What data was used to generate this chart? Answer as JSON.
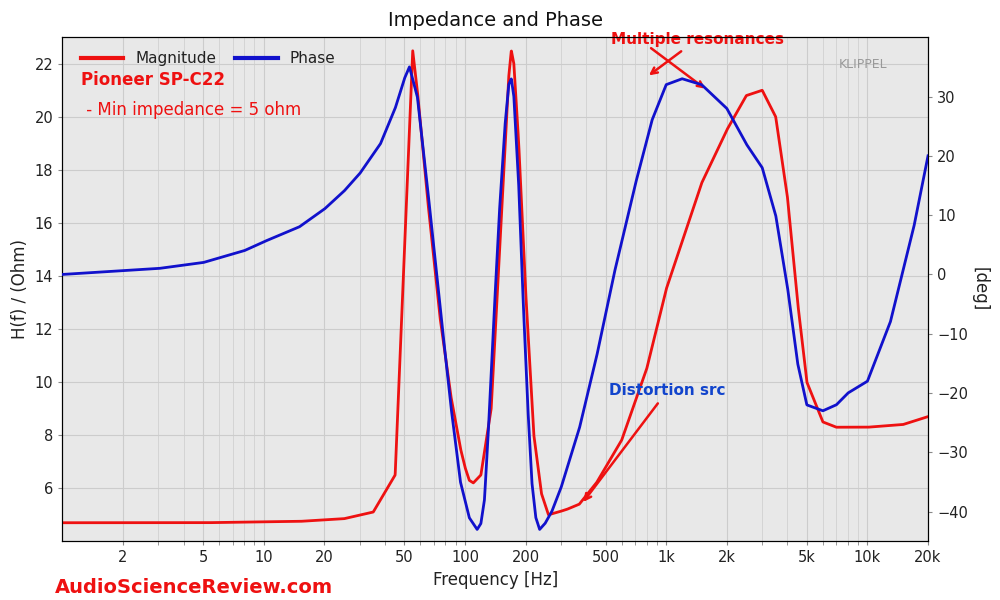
{
  "title": "Impedance and Phase",
  "xlabel": "Frequency [Hz]",
  "ylabel_left": "H(f) / (Ohm)",
  "ylabel_right": "[deg]",
  "xlim": [
    1,
    20000
  ],
  "ylim_left": [
    4,
    23
  ],
  "ylim_right": [
    -45,
    40
  ],
  "yticks_left": [
    6,
    8,
    10,
    12,
    14,
    16,
    18,
    20,
    22
  ],
  "yticks_right": [
    -40,
    -30,
    -20,
    -10,
    0,
    10,
    20,
    30
  ],
  "xtick_labels": [
    "2",
    "5",
    "10",
    "20",
    "50",
    "100",
    "200",
    "500",
    "1k",
    "2k",
    "5k",
    "10k",
    "20k"
  ],
  "xtick_values": [
    2,
    5,
    10,
    20,
    50,
    100,
    200,
    500,
    1000,
    2000,
    5000,
    10000,
    20000
  ],
  "mag_color": "#ee1111",
  "phase_color": "#1111cc",
  "annot_color": "#ee1111",
  "text_blue": "#1144cc",
  "text_red": "#ee1111",
  "watermark_asr": "AudioScienceReview.com",
  "watermark_klippel": "KLIPPEL",
  "text_pioneer": "Pioneer SP-C22",
  "text_impedance": " - Min impedance = 5 ohm",
  "bg_color": "#ffffff",
  "plot_bg": "#e8e8e8",
  "grid_color": "#cccccc",
  "annot1_text": "Multiple resonances",
  "annot2_text": "Distortion src"
}
